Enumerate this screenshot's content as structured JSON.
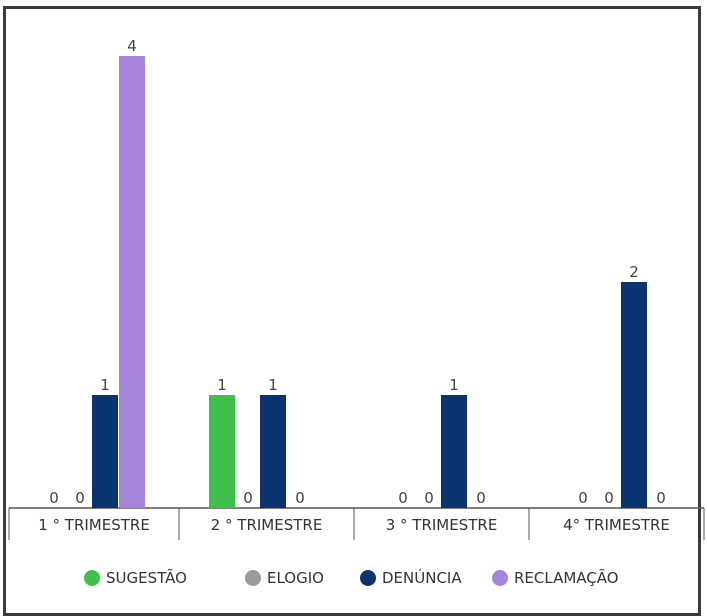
{
  "chart_data": {
    "type": "bar",
    "categories": [
      "1 ° TRIMESTRE",
      "2 ° TRIMESTRE",
      "3 ° TRIMESTRE",
      "4° TRIMESTRE"
    ],
    "series": [
      {
        "name": "SUGESTÃO",
        "color": "#3fc04d",
        "values": [
          0,
          1,
          0,
          0
        ]
      },
      {
        "name": "ELOGIO",
        "color": "#9b9b9b",
        "values": [
          0,
          0,
          0,
          0
        ]
      },
      {
        "name": "DENÚNCIA",
        "color": "#0b3370",
        "values": [
          1,
          1,
          1,
          2
        ]
      },
      {
        "name": "RECLAMAÇÃO",
        "color": "#a585dc",
        "values": [
          4,
          0,
          0,
          0
        ]
      }
    ],
    "ylim": [
      0,
      4
    ],
    "grid": false,
    "legend_position": "bottom",
    "data_labels": true
  }
}
